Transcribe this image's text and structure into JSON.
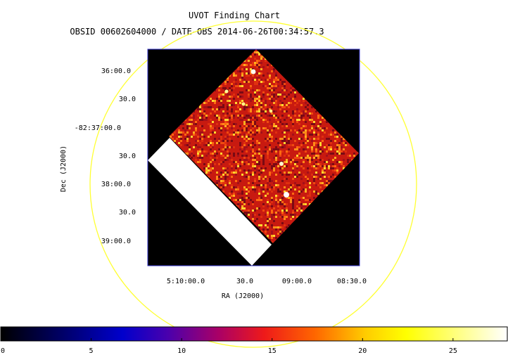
{
  "title": "UVOT Finding Chart",
  "subtitle": "OBSID 00602604000 / DATE-OBS 2014-06-26T00:34:57.3",
  "axes": {
    "xlabel": "RA (J2000)",
    "ylabel": "Dec (J2000)",
    "ra_ticks": [
      "5:10:00.0",
      "30.0",
      "09:00.0",
      "08:30.0"
    ],
    "dec_ticks": [
      "36:00.0",
      "30.0",
      "-82:37:00.0",
      "30.0",
      "38:00.0",
      "30.0",
      "39:00.0"
    ]
  },
  "colorbar": {
    "min": 0,
    "max": 28,
    "ticks": [
      "0",
      "5",
      "10",
      "15",
      "20",
      "25"
    ],
    "tick_values": [
      0,
      5,
      10,
      15,
      20,
      25
    ],
    "colormap": "heat"
  },
  "colors": {
    "circle": "#ffff33",
    "frame": "#3333cc",
    "background": "#000000",
    "mask": "#ffffff"
  },
  "bright_sources": [
    {
      "id": "src-1",
      "level": 1.0
    },
    {
      "id": "src-2",
      "level": 0.95
    },
    {
      "id": "src-3",
      "level": 0.9
    },
    {
      "id": "src-4",
      "level": 0.85
    },
    {
      "id": "src-5",
      "level": 0.8
    },
    {
      "id": "src-6",
      "level": 0.8
    }
  ]
}
